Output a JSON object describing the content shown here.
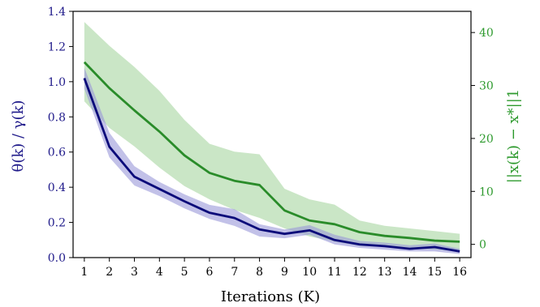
{
  "chart_data": {
    "type": "line",
    "title": "",
    "xlabel": "Iterations (K)",
    "ylabel_left": "θ(k) / γ(k)",
    "ylabel_right": "||x(k) − x*||1",
    "x": [
      1,
      2,
      3,
      4,
      5,
      6,
      7,
      8,
      9,
      10,
      11,
      12,
      13,
      14,
      15,
      16
    ],
    "x_ticks": [
      "1",
      "2",
      "3",
      "4",
      "5",
      "6",
      "7",
      "8",
      "9",
      "10",
      "11",
      "12",
      "13",
      "14",
      "15",
      "16"
    ],
    "ylim_left": [
      0,
      1.4
    ],
    "ylim_right": [
      -2.5,
      44
    ],
    "y_ticks_left": [
      "0.0",
      "0.2",
      "0.4",
      "0.6",
      "0.8",
      "1.0",
      "1.2",
      "1.4"
    ],
    "y_ticks_right": [
      "0",
      "10",
      "20",
      "30",
      "40"
    ],
    "grid": false,
    "colors": {
      "left_series": "#0b0b7a",
      "left_band": "#9a98d8",
      "right_series": "#2a8c2a",
      "right_band": "#b8deb3",
      "left_axis_text": "#1f1a8a",
      "right_axis_text": "#2e9a2e"
    },
    "series": [
      {
        "axis": "left",
        "mean": [
          1.02,
          0.63,
          0.46,
          0.39,
          0.32,
          0.255,
          0.225,
          0.16,
          0.135,
          0.155,
          0.1,
          0.075,
          0.065,
          0.05,
          0.06,
          0.035
        ],
        "upper": [
          1.08,
          0.71,
          0.52,
          0.43,
          0.36,
          0.3,
          0.275,
          0.19,
          0.16,
          0.185,
          0.13,
          0.095,
          0.085,
          0.07,
          0.08,
          0.05
        ],
        "lower": [
          0.96,
          0.57,
          0.41,
          0.35,
          0.28,
          0.22,
          0.18,
          0.12,
          0.11,
          0.13,
          0.075,
          0.055,
          0.045,
          0.035,
          0.035,
          0.02
        ]
      },
      {
        "axis": "right",
        "mean": [
          34.4,
          29.5,
          25.3,
          21.3,
          16.8,
          13.5,
          12.0,
          11.2,
          6.4,
          4.5,
          3.8,
          2.3,
          1.6,
          1.2,
          0.7,
          0.5
        ],
        "upper": [
          42,
          37.5,
          33.5,
          29,
          23.5,
          19.0,
          17.5,
          17.0,
          10.5,
          8.5,
          7.5,
          4.5,
          3.5,
          3.0,
          2.5,
          2.0
        ],
        "lower": [
          27,
          22.0,
          18.5,
          14.5,
          11.0,
          8.5,
          6.5,
          5.0,
          3.0,
          1.5,
          0.5,
          -0.3,
          -0.5,
          -0.7,
          -1.0,
          -1.3
        ]
      }
    ]
  }
}
